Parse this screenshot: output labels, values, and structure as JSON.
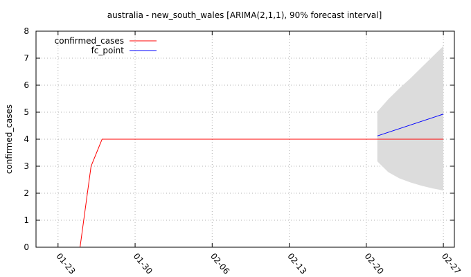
{
  "chart_data": {
    "type": "line",
    "title": "australia - new_south_wales [ARIMA(2,1,1), 90% forecast interval]",
    "xlabel": "",
    "ylabel": "confirmed_cases",
    "grid": true,
    "legend_position": "top-left",
    "ylim": [
      0,
      8
    ],
    "xlim": [
      "2020-01-21",
      "2020-02-28"
    ],
    "y_ticks": [
      0,
      1,
      2,
      3,
      4,
      5,
      6,
      7,
      8
    ],
    "x_ticks": [
      {
        "date": "2020-01-23",
        "label": "01-23"
      },
      {
        "date": "2020-01-30",
        "label": "01-30"
      },
      {
        "date": "2020-02-06",
        "label": "02-06"
      },
      {
        "date": "2020-02-13",
        "label": "02-13"
      },
      {
        "date": "2020-02-20",
        "label": "02-20"
      },
      {
        "date": "2020-02-27",
        "label": "02-27"
      }
    ],
    "series": [
      {
        "name": "confirmed_cases",
        "color": "#ff0000",
        "points": [
          {
            "x": "2020-01-25",
            "y": 0
          },
          {
            "x": "2020-01-26",
            "y": 3
          },
          {
            "x": "2020-01-27",
            "y": 4
          },
          {
            "x": "2020-02-27",
            "y": 4
          }
        ]
      },
      {
        "name": "fc_point",
        "color": "#0000ff",
        "points": [
          {
            "x": "2020-02-21",
            "y": 4.12
          },
          {
            "x": "2020-02-27",
            "y": 4.93
          }
        ]
      }
    ],
    "forecast_interval": {
      "color": "#dcdcdc",
      "points": [
        {
          "x": "2020-02-21",
          "lower": 3.18,
          "upper": 5.02
        },
        {
          "x": "2020-02-22",
          "lower": 2.78,
          "upper": 5.48
        },
        {
          "x": "2020-02-23",
          "lower": 2.55,
          "upper": 5.88
        },
        {
          "x": "2020-02-24",
          "lower": 2.4,
          "upper": 6.25
        },
        {
          "x": "2020-02-25",
          "lower": 2.28,
          "upper": 6.65
        },
        {
          "x": "2020-02-26",
          "lower": 2.18,
          "upper": 7.05
        },
        {
          "x": "2020-02-27",
          "lower": 2.1,
          "upper": 7.45
        }
      ]
    }
  }
}
